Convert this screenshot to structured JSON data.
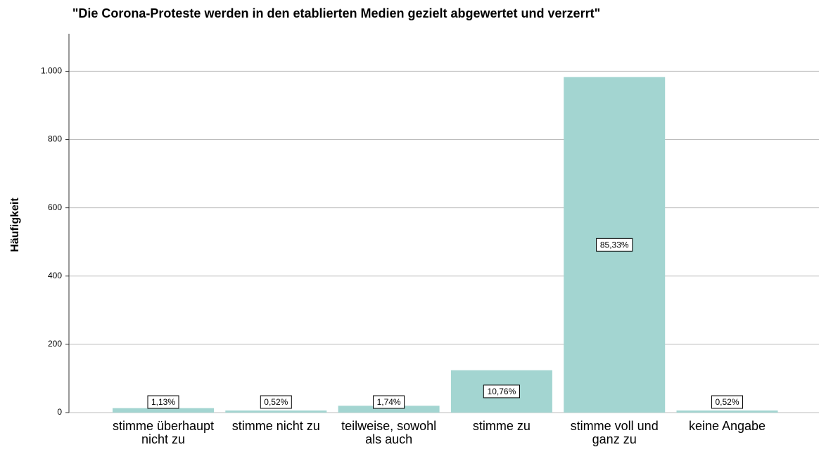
{
  "chart_data": {
    "type": "bar",
    "title": "\"Die Corona-Proteste werden in den etablierten Medien gezielt abgewertet und verzerrt\"",
    "y_label": "Häufigkeit",
    "categories": [
      "stimme überhaupt nicht zu",
      "stimme nicht zu",
      "teilweise, sowohl als auch",
      "stimme zu",
      "stimme voll und ganz zu",
      "keine Angabe"
    ],
    "values": [
      13,
      6,
      20,
      124,
      983,
      6
    ],
    "percent_labels": [
      {
        "value": 1.13,
        "label": "1,13%"
      },
      {
        "value": 0.52,
        "label": "0,52%"
      },
      {
        "value": 1.74,
        "label": "1,74%"
      },
      {
        "value": 10.76,
        "label": "10,76%"
      },
      {
        "value": 85.33,
        "label": "85,33%"
      },
      {
        "value": 0.52,
        "label": "0,52%"
      }
    ],
    "color": "#a3d5d1",
    "ylim": [
      0,
      1110
    ],
    "yticks": [
      0,
      200,
      400,
      600,
      800,
      {
        "value": 1000,
        "label": "1.000"
      }
    ],
    "grid": true
  }
}
